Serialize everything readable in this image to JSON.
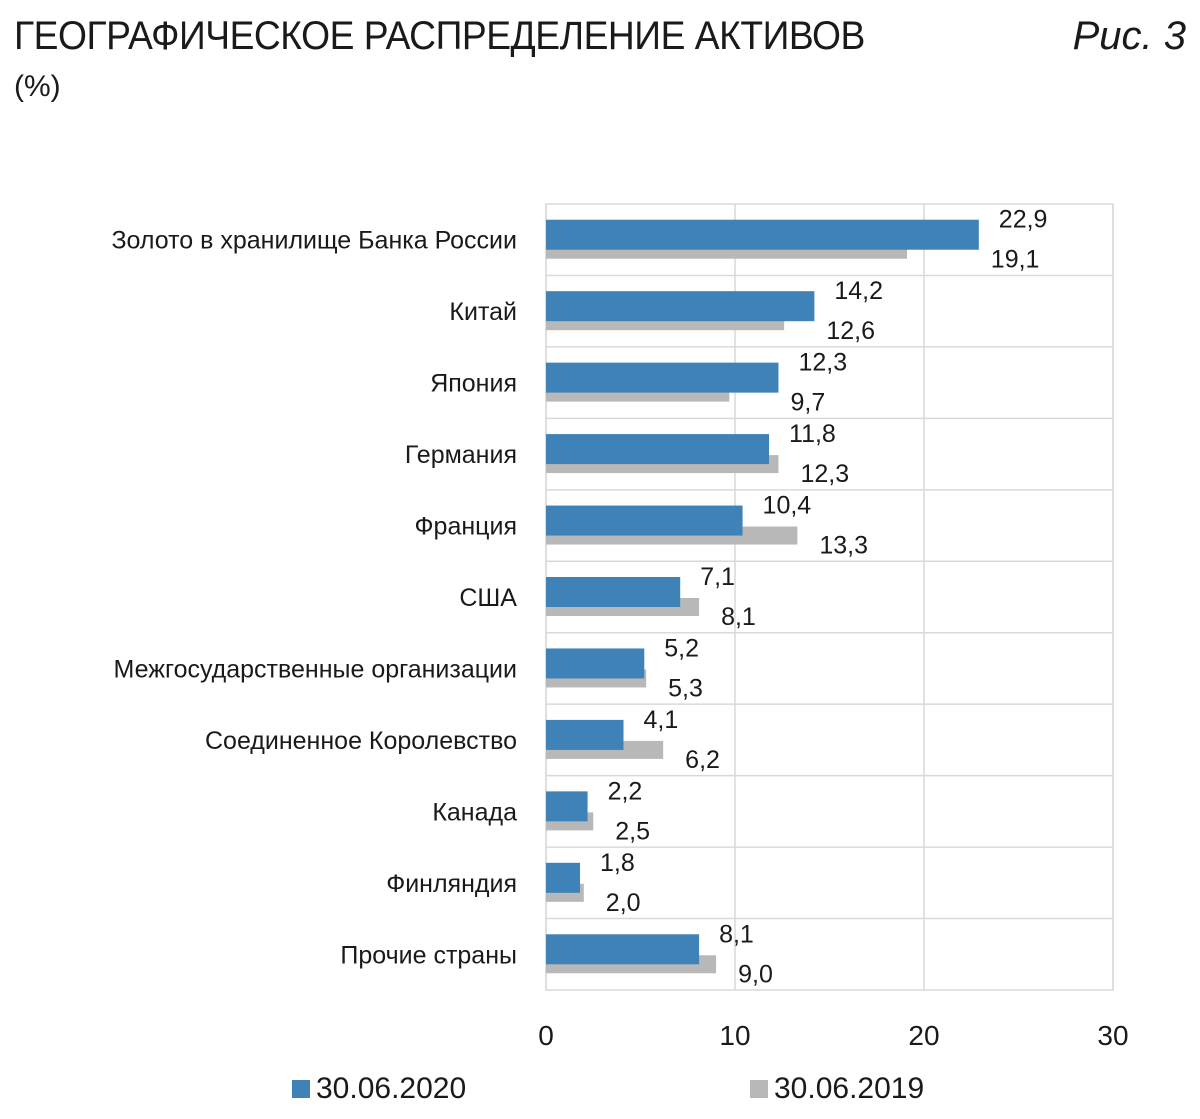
{
  "header": {
    "title": "ГЕОГРАФИЧЕСКОЕ РАСПРЕДЕЛЕНИЕ АКТИВОВ",
    "figure_label": "Рис. 3",
    "units": "(%)"
  },
  "colors": {
    "series_2020": "#3e82b8",
    "series_2019": "#b8b8b8",
    "grid": "#d9d9d9"
  },
  "chart_data": {
    "type": "bar",
    "orientation": "horizontal",
    "categories": [
      "Золото в хранилище Банка России",
      "Китай",
      "Япония",
      "Германия",
      "Франция",
      "США",
      "Межгосударственные организации",
      "Соединенное Королевство",
      "Канада",
      "Финляндия",
      "Прочие страны"
    ],
    "series": [
      {
        "name": "30.06.2020",
        "values": [
          22.9,
          14.2,
          12.3,
          11.8,
          10.4,
          7.1,
          5.2,
          4.1,
          2.2,
          1.8,
          8.1
        ],
        "labels": [
          "22,9",
          "14,2",
          "12,3",
          "11,8",
          "10,4",
          "7,1",
          "5,2",
          "4,1",
          "2,2",
          "1,8",
          "8,1"
        ]
      },
      {
        "name": "30.06.2019",
        "values": [
          19.1,
          12.6,
          9.7,
          12.3,
          13.3,
          8.1,
          5.3,
          6.2,
          2.5,
          2.0,
          9.0
        ],
        "labels": [
          "19,1",
          "12,6",
          "9,7",
          "12,3",
          "13,3",
          "8,1",
          "5,3",
          "6,2",
          "2,5",
          "2,0",
          "9,0"
        ]
      }
    ],
    "xlim": [
      0,
      30
    ],
    "xticks": [
      0,
      10,
      20,
      30
    ],
    "xtick_labels": [
      "0",
      "10",
      "20",
      "30"
    ],
    "grid": true,
    "legend_position": "bottom"
  }
}
